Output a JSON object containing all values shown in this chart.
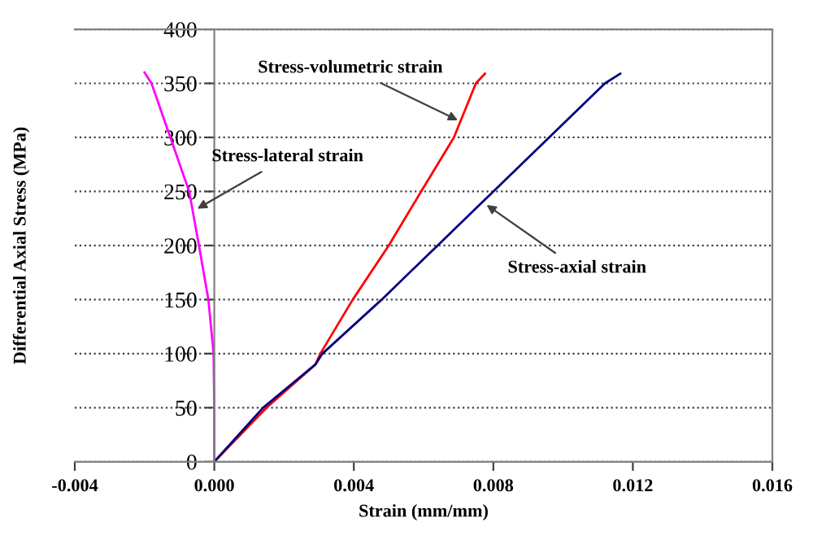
{
  "chart_data": {
    "type": "line",
    "xlabel": "Strain (mm/mm)",
    "ylabel": "Differential Axial Stress (MPa)",
    "xlim": [
      -0.004,
      0.016
    ],
    "ylim": [
      0,
      400
    ],
    "xticks": [
      {
        "value": -0.004,
        "label": "-0.004"
      },
      {
        "value": 0,
        "label": "0.000"
      },
      {
        "value": 0.004,
        "label": "0.004"
      },
      {
        "value": 0.008,
        "label": "0.008"
      },
      {
        "value": 0.012,
        "label": "0.012"
      },
      {
        "value": 0.016,
        "label": "0.016"
      }
    ],
    "yticks": [
      0,
      50,
      100,
      150,
      200,
      250,
      300,
      350,
      400
    ],
    "grid": "y",
    "marker": "none",
    "line_style": "solid",
    "series": [
      {
        "color": "#ff00ff",
        "x": [
          0,
          0.0,
          -2e-05,
          -0.00017,
          -0.00044,
          -0.00072,
          -0.00126,
          -0.0018,
          -0.002
        ],
        "values": [
          0,
          50,
          100,
          150,
          200,
          250,
          300,
          350,
          360
        ]
      },
      {
        "color": "#ff0000",
        "x": [
          0,
          0.0015,
          0.0029,
          0.00304,
          0.00397,
          0.005,
          0.00593,
          0.00687,
          0.0075,
          0.00776
        ],
        "values": [
          0,
          50,
          90,
          100,
          150,
          200,
          250,
          300,
          350,
          359
        ]
      },
      {
        "color": "#000080",
        "x": [
          0,
          0.0014,
          0.0029,
          0.0031,
          0.0048,
          0.0064,
          0.008,
          0.0096,
          0.0112,
          0.01164
        ],
        "values": [
          0,
          50,
          90,
          100,
          150,
          200,
          250,
          300,
          350,
          359
        ]
      }
    ],
    "annotations": [
      {
        "text": "Stress-volumetric strain",
        "x": 0.0071,
        "y": 314
      },
      {
        "text": "Stress-lateral strain",
        "x": -0.0006,
        "y": 232
      },
      {
        "text": "Stress-axial strain",
        "x": 0.0077,
        "y": 240
      }
    ]
  }
}
